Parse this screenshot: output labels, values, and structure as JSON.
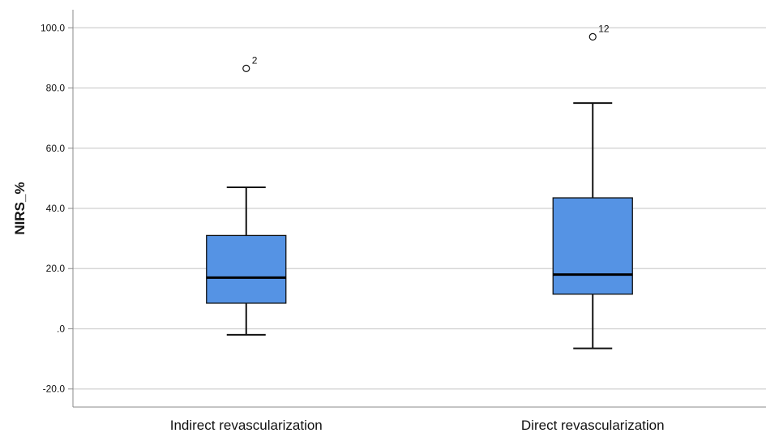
{
  "chart_data": {
    "type": "boxplot",
    "ylabel": "NIRS_%",
    "ylim": [
      -26,
      106
    ],
    "y_ticks": [
      -20,
      0,
      20,
      40,
      60,
      80,
      100
    ],
    "y_tick_labels": [
      "-20.0",
      ".0",
      "20.0",
      "40.0",
      "60.0",
      "80.0",
      "100.0"
    ],
    "grid": "horizontal",
    "box_color": "#5593e4",
    "categories": [
      "Indirect revascularization",
      "Direct revascularization"
    ],
    "boxes": [
      {
        "category": "Indirect revascularization",
        "whisker_low": -2,
        "q1": 8.5,
        "median": 17,
        "q3": 31,
        "whisker_high": 47,
        "outliers": [
          {
            "value": 86.5,
            "label": "2"
          }
        ]
      },
      {
        "category": "Direct revascularization",
        "whisker_low": -6.5,
        "q1": 11.5,
        "median": 18,
        "q3": 43.5,
        "whisker_high": 75,
        "outliers": [
          {
            "value": 97,
            "label": "12"
          }
        ]
      }
    ]
  }
}
